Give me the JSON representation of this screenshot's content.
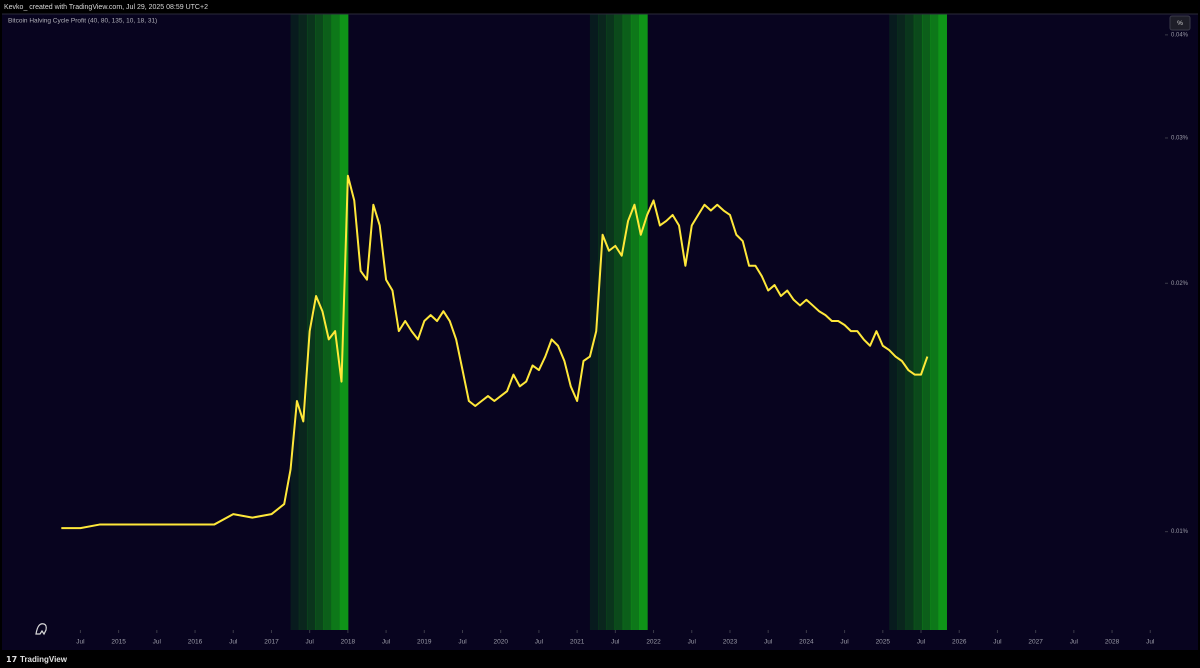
{
  "header": "Kevko_ created with TradingView.com, Jul 29, 2025 08:59 UTC+2",
  "footer": "TradingView",
  "scale_button": "%",
  "chart_data": {
    "type": "line",
    "title": "Bitcoin Halving Cycle Profit (40, 80, 135, 10, 18, 31)",
    "log_scale": true,
    "grid": false,
    "background": "#08041f",
    "xlim": [
      "2013-07",
      "2028-09"
    ],
    "ylim": [
      0.0076,
      0.0424
    ],
    "yticks": [
      {
        "value": 0.01,
        "label": "0.01%"
      },
      {
        "value": 0.02,
        "label": "0.02%"
      },
      {
        "value": 0.03,
        "label": "0.03%"
      },
      {
        "value": 0.04,
        "label": "0.04%"
      }
    ],
    "xticks": [
      {
        "value": "2014-07",
        "label": "Jul"
      },
      {
        "value": "2015-01",
        "label": "2015"
      },
      {
        "value": "2015-07",
        "label": "Jul"
      },
      {
        "value": "2016-01",
        "label": "2016"
      },
      {
        "value": "2016-07",
        "label": "Jul"
      },
      {
        "value": "2017-01",
        "label": "2017"
      },
      {
        "value": "2017-07",
        "label": "Jul"
      },
      {
        "value": "2018-01",
        "label": "2018"
      },
      {
        "value": "2018-07",
        "label": "Jul"
      },
      {
        "value": "2019-01",
        "label": "2019"
      },
      {
        "value": "2019-07",
        "label": "Jul"
      },
      {
        "value": "2020-01",
        "label": "2020"
      },
      {
        "value": "2020-07",
        "label": "Jul"
      },
      {
        "value": "2021-01",
        "label": "2021"
      },
      {
        "value": "2021-07",
        "label": "Jul"
      },
      {
        "value": "2022-01",
        "label": "2022"
      },
      {
        "value": "2022-07",
        "label": "Jul"
      },
      {
        "value": "2023-01",
        "label": "2023"
      },
      {
        "value": "2023-07",
        "label": "Jul"
      },
      {
        "value": "2024-01",
        "label": "2024"
      },
      {
        "value": "2024-07",
        "label": "Jul"
      },
      {
        "value": "2025-01",
        "label": "2025"
      },
      {
        "value": "2025-07",
        "label": "Jul"
      },
      {
        "value": "2026-01",
        "label": "2026"
      },
      {
        "value": "2026-07",
        "label": "Jul"
      },
      {
        "value": "2027-01",
        "label": "2027"
      },
      {
        "value": "2027-07",
        "label": "Jul"
      },
      {
        "value": "2028-01",
        "label": "2028"
      },
      {
        "value": "2028-07",
        "label": "Jul"
      }
    ],
    "band_color": "#0f9418",
    "bands": [
      {
        "start": "2017-04",
        "end": "2018-01"
      },
      {
        "start": "2021-03",
        "end": "2021-12"
      },
      {
        "start": "2025-02",
        "end": "2025-11"
      }
    ],
    "x": [
      "2014-04",
      "2014-07",
      "2014-10",
      "2015-01",
      "2015-04",
      "2015-07",
      "2015-10",
      "2016-01",
      "2016-04",
      "2016-07",
      "2016-10",
      "2017-01",
      "2017-03",
      "2017-04",
      "2017-05",
      "2017-06",
      "2017-07",
      "2017-08",
      "2017-09",
      "2017-10",
      "2017-11",
      "2017-12",
      "2018-01",
      "2018-02",
      "2018-03",
      "2018-04",
      "2018-05",
      "2018-06",
      "2018-07",
      "2018-08",
      "2018-09",
      "2018-10",
      "2018-11",
      "2018-12",
      "2019-01",
      "2019-02",
      "2019-03",
      "2019-04",
      "2019-05",
      "2019-06",
      "2019-07",
      "2019-08",
      "2019-09",
      "2019-10",
      "2019-11",
      "2019-12",
      "2020-01",
      "2020-02",
      "2020-03",
      "2020-04",
      "2020-05",
      "2020-06",
      "2020-07",
      "2020-08",
      "2020-09",
      "2020-10",
      "2020-11",
      "2020-12",
      "2021-01",
      "2021-02",
      "2021-03",
      "2021-04",
      "2021-05",
      "2021-06",
      "2021-07",
      "2021-08",
      "2021-09",
      "2021-10",
      "2021-11",
      "2021-12",
      "2022-01",
      "2022-02",
      "2022-03",
      "2022-04",
      "2022-05",
      "2022-06",
      "2022-07",
      "2022-08",
      "2022-09",
      "2022-10",
      "2022-11",
      "2022-12",
      "2023-01",
      "2023-02",
      "2023-03",
      "2023-04",
      "2023-05",
      "2023-06",
      "2023-07",
      "2023-08",
      "2023-09",
      "2023-10",
      "2023-11",
      "2023-12",
      "2024-01",
      "2024-02",
      "2024-03",
      "2024-04",
      "2024-05",
      "2024-06",
      "2024-07",
      "2024-08",
      "2024-09",
      "2024-10",
      "2024-11",
      "2024-12",
      "2025-01",
      "2025-02",
      "2025-03",
      "2025-04",
      "2025-05",
      "2025-06",
      "2025-07",
      "2025-08"
    ],
    "series": [
      {
        "color": "#ffe83a",
        "values": [
          0.0101,
          0.0101,
          0.0102,
          0.0102,
          0.0102,
          0.0102,
          0.0102,
          0.0102,
          0.0102,
          0.0105,
          0.0104,
          0.0105,
          0.0108,
          0.0119,
          0.0144,
          0.0136,
          0.0175,
          0.0193,
          0.0185,
          0.0171,
          0.0175,
          0.0152,
          0.027,
          0.0252,
          0.0207,
          0.0202,
          0.0249,
          0.0235,
          0.0202,
          0.0196,
          0.0175,
          0.018,
          0.0175,
          0.0171,
          0.018,
          0.0183,
          0.018,
          0.0185,
          0.018,
          0.0171,
          0.0157,
          0.0144,
          0.0142,
          0.0144,
          0.0146,
          0.0144,
          0.0146,
          0.0148,
          0.0155,
          0.015,
          0.0152,
          0.0159,
          0.0157,
          0.0163,
          0.0171,
          0.0168,
          0.0161,
          0.015,
          0.0144,
          0.0161,
          0.0163,
          0.0175,
          0.0229,
          0.0219,
          0.0222,
          0.0216,
          0.0238,
          0.0249,
          0.0229,
          0.0242,
          0.0252,
          0.0235,
          0.0238,
          0.0242,
          0.0235,
          0.021,
          0.0235,
          0.0242,
          0.0249,
          0.0245,
          0.0249,
          0.0245,
          0.0242,
          0.0229,
          0.0225,
          0.021,
          0.021,
          0.0204,
          0.0196,
          0.0199,
          0.0193,
          0.0196,
          0.0191,
          0.0188,
          0.0191,
          0.0188,
          0.0185,
          0.0183,
          0.018,
          0.018,
          0.0178,
          0.0175,
          0.0175,
          0.0171,
          0.0168,
          0.0175,
          0.0168,
          0.0166,
          0.0163,
          0.0161,
          0.0157,
          0.0155,
          0.0155,
          0.0163
        ]
      }
    ]
  }
}
